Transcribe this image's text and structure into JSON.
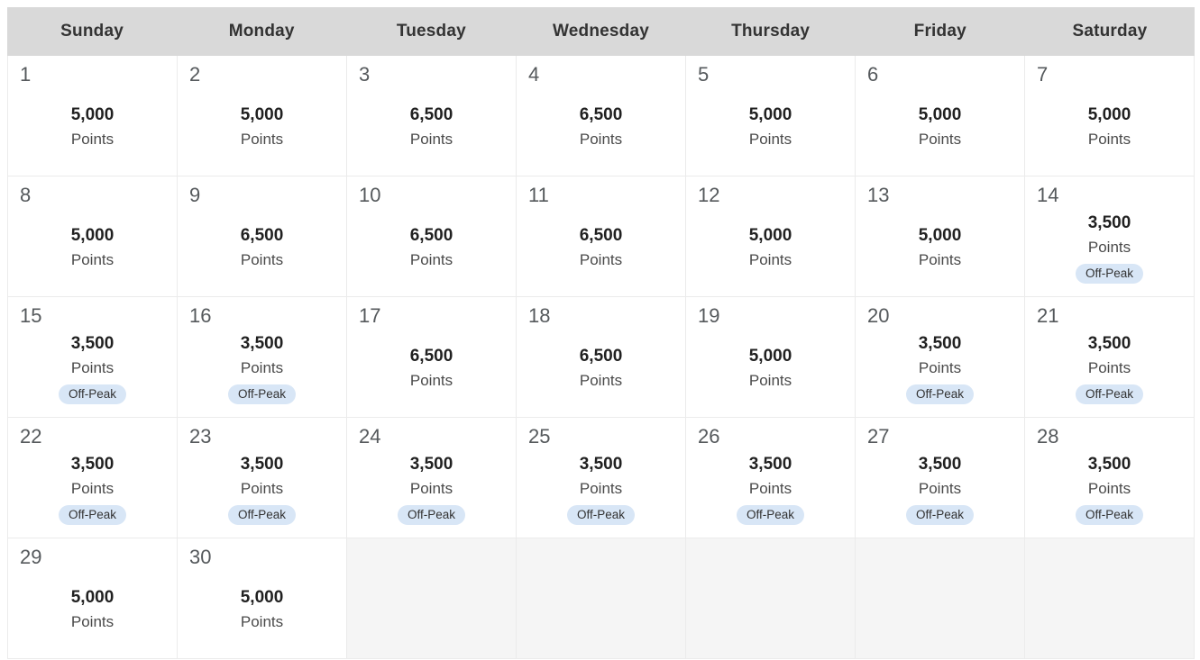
{
  "calendar": {
    "weekday_headers": [
      "Sunday",
      "Monday",
      "Tuesday",
      "Wednesday",
      "Thursday",
      "Friday",
      "Saturday"
    ],
    "points_label": "Points",
    "off_peak_label": "Off-Peak",
    "days": [
      {
        "day": "1",
        "points": "5,000",
        "off_peak": false
      },
      {
        "day": "2",
        "points": "5,000",
        "off_peak": false
      },
      {
        "day": "3",
        "points": "6,500",
        "off_peak": false
      },
      {
        "day": "4",
        "points": "6,500",
        "off_peak": false
      },
      {
        "day": "5",
        "points": "5,000",
        "off_peak": false
      },
      {
        "day": "6",
        "points": "5,000",
        "off_peak": false
      },
      {
        "day": "7",
        "points": "5,000",
        "off_peak": false
      },
      {
        "day": "8",
        "points": "5,000",
        "off_peak": false
      },
      {
        "day": "9",
        "points": "6,500",
        "off_peak": false
      },
      {
        "day": "10",
        "points": "6,500",
        "off_peak": false
      },
      {
        "day": "11",
        "points": "6,500",
        "off_peak": false
      },
      {
        "day": "12",
        "points": "5,000",
        "off_peak": false
      },
      {
        "day": "13",
        "points": "5,000",
        "off_peak": false
      },
      {
        "day": "14",
        "points": "3,500",
        "off_peak": true
      },
      {
        "day": "15",
        "points": "3,500",
        "off_peak": true
      },
      {
        "day": "16",
        "points": "3,500",
        "off_peak": true
      },
      {
        "day": "17",
        "points": "6,500",
        "off_peak": false
      },
      {
        "day": "18",
        "points": "6,500",
        "off_peak": false
      },
      {
        "day": "19",
        "points": "5,000",
        "off_peak": false
      },
      {
        "day": "20",
        "points": "3,500",
        "off_peak": true
      },
      {
        "day": "21",
        "points": "3,500",
        "off_peak": true
      },
      {
        "day": "22",
        "points": "3,500",
        "off_peak": true
      },
      {
        "day": "23",
        "points": "3,500",
        "off_peak": true
      },
      {
        "day": "24",
        "points": "3,500",
        "off_peak": true
      },
      {
        "day": "25",
        "points": "3,500",
        "off_peak": true
      },
      {
        "day": "26",
        "points": "3,500",
        "off_peak": true
      },
      {
        "day": "27",
        "points": "3,500",
        "off_peak": true
      },
      {
        "day": "28",
        "points": "3,500",
        "off_peak": true
      },
      {
        "day": "29",
        "points": "5,000",
        "off_peak": false
      },
      {
        "day": "30",
        "points": "5,000",
        "off_peak": false
      },
      null,
      null,
      null,
      null,
      null
    ]
  },
  "colors": {
    "header_bg": "#d9d9d9",
    "header_text": "#333333",
    "day_number": "#55595c",
    "points_value": "#212121",
    "points_label": "#4a4a4a",
    "badge_bg": "#d8e6f6",
    "badge_text": "#333333",
    "grid_line": "#ebebeb",
    "empty_cell_bg": "#f5f5f5"
  }
}
